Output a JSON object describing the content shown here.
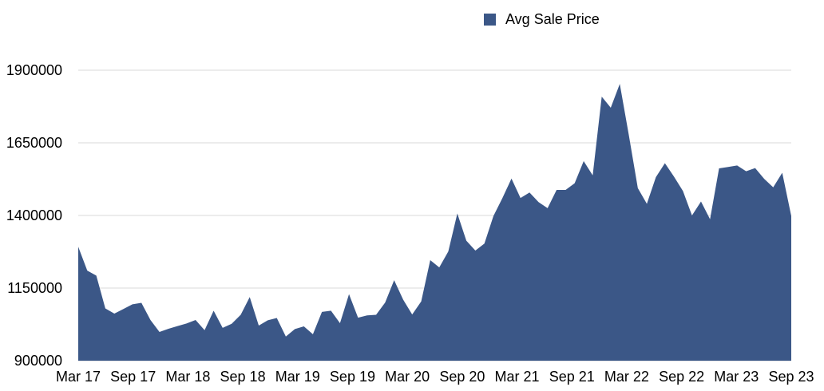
{
  "chart_data": {
    "type": "area",
    "title": "",
    "xlabel": "",
    "ylabel": "",
    "ylim": [
      900000,
      1900000
    ],
    "yticks": [
      "1900000",
      "1650000",
      "1400000",
      "1150000",
      "900000"
    ],
    "xticks": [
      "Mar 17",
      "Sep 17",
      "Mar 18",
      "Sep 18",
      "Mar 19",
      "Sep 19",
      "Mar 20",
      "Sep 20",
      "Mar 21",
      "Sep 21",
      "Mar 22",
      "Sep 22",
      "Mar 23",
      "Sep 23"
    ],
    "grid": true,
    "legend_position": "top",
    "color": "#3b5787",
    "series": [
      {
        "name": "Avg Sale Price",
        "values": [
          1292000,
          1210000,
          1193000,
          1080000,
          1062000,
          1078000,
          1094000,
          1099000,
          1040000,
          999000,
          1010000,
          1019000,
          1028000,
          1040000,
          1005000,
          1072000,
          1013000,
          1027000,
          1058000,
          1119000,
          1021000,
          1039000,
          1047000,
          983000,
          1009000,
          1018000,
          991000,
          1068000,
          1072000,
          1029000,
          1129000,
          1048000,
          1056000,
          1058000,
          1100000,
          1177000,
          1110000,
          1059000,
          1104000,
          1246000,
          1221000,
          1276000,
          1407000,
          1313000,
          1279000,
          1303000,
          1398000,
          1460000,
          1527000,
          1460000,
          1479000,
          1446000,
          1425000,
          1488000,
          1488000,
          1511000,
          1587000,
          1538000,
          1809000,
          1771000,
          1853000,
          1677000,
          1494000,
          1440000,
          1532000,
          1580000,
          1534000,
          1484000,
          1400000,
          1448000,
          1387000,
          1562000,
          1567000,
          1572000,
          1552000,
          1563000,
          1526000,
          1497000,
          1547000,
          1398000
        ]
      }
    ]
  }
}
